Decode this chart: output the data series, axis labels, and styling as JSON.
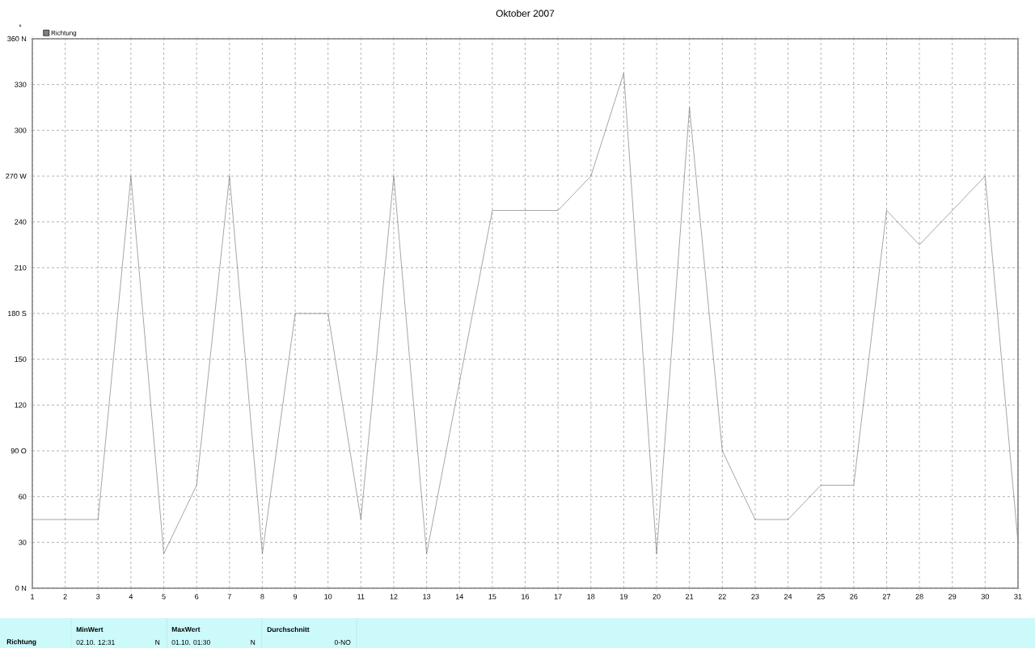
{
  "chart_data": {
    "type": "line",
    "title": "Oktober 2007",
    "ylabel": "°",
    "x": [
      1,
      2,
      3,
      4,
      5,
      6,
      7,
      8,
      9,
      10,
      11,
      12,
      13,
      15,
      16,
      17,
      18,
      19,
      20,
      21,
      22,
      23,
      24,
      25,
      26,
      27,
      28,
      29,
      30,
      31
    ],
    "series": [
      {
        "name": "Richtung",
        "color": "#808080",
        "values": [
          45,
          45,
          45,
          270,
          22.5,
          67.5,
          270,
          22.5,
          180,
          180,
          45,
          270,
          22.5,
          247.5,
          247.5,
          247.5,
          270,
          337.5,
          22.5,
          315,
          90,
          45,
          45,
          67.5,
          67.5,
          247.5,
          225,
          247.5,
          270,
          30
        ]
      }
    ],
    "xlim": [
      1,
      31
    ],
    "xticks": [
      1,
      2,
      3,
      4,
      5,
      6,
      7,
      8,
      9,
      10,
      11,
      12,
      13,
      14,
      15,
      16,
      17,
      18,
      19,
      20,
      21,
      22,
      23,
      24,
      25,
      26,
      27,
      28,
      29,
      30,
      31
    ],
    "ylim": [
      0,
      360
    ],
    "yticks": [
      {
        "value": 0,
        "label": "0  N"
      },
      30,
      60,
      {
        "value": 90,
        "label": "90  O"
      },
      120,
      150,
      {
        "value": 180,
        "label": "180 S"
      },
      210,
      240,
      {
        "value": 270,
        "label": "270 W"
      },
      300,
      330,
      {
        "value": 360,
        "label": "360 N"
      }
    ],
    "grid": true,
    "legend": "top left",
    "line_style": "solid",
    "annotations": [
      "Richtung",
      "MinWert",
      "02.10.  12:31",
      "N",
      "MaxWert",
      "01.10.  01:30",
      "N",
      "Durchschnitt",
      "0-NO"
    ]
  }
}
